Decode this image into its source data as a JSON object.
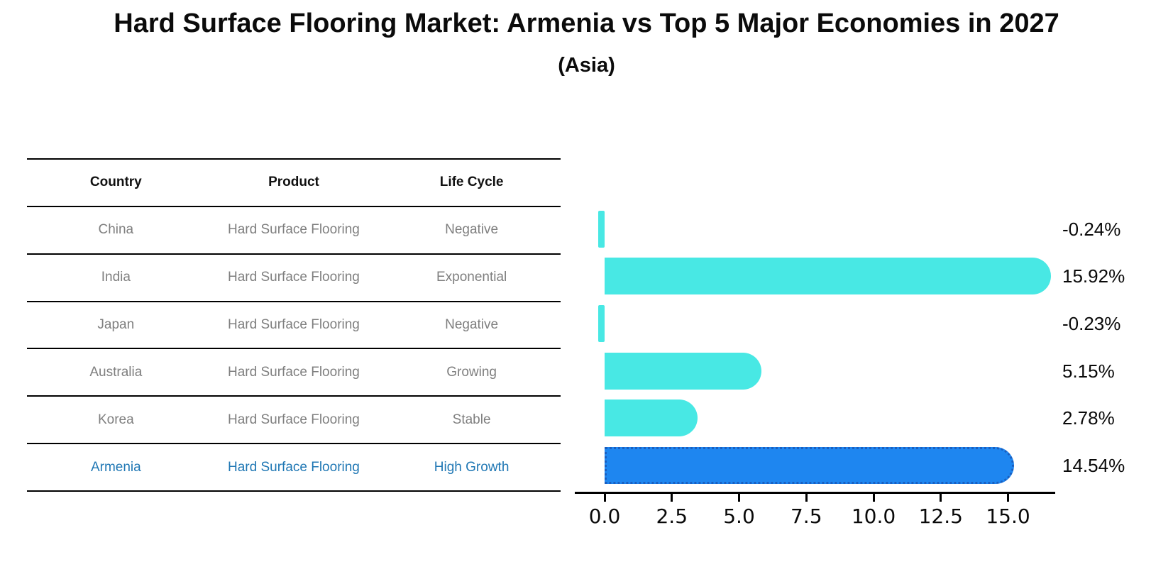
{
  "title": "Hard Surface Flooring Market: Armenia vs Top 5 Major Economies in 2027",
  "subtitle": "(Asia)",
  "table": {
    "headers": [
      "Country",
      "Product",
      "Life Cycle"
    ],
    "rows": [
      {
        "country": "China",
        "product": "Hard Surface Flooring",
        "life_cycle": "Negative",
        "highlight": false
      },
      {
        "country": "India",
        "product": "Hard Surface Flooring",
        "life_cycle": "Exponential",
        "highlight": false
      },
      {
        "country": "Japan",
        "product": "Hard Surface Flooring",
        "life_cycle": "Negative",
        "highlight": false
      },
      {
        "country": "Australia",
        "product": "Hard Surface Flooring",
        "life_cycle": "Growing",
        "highlight": false
      },
      {
        "country": "Korea",
        "product": "Hard Surface Flooring",
        "life_cycle": "Stable",
        "highlight": false
      },
      {
        "country": "Armenia",
        "product": "Hard Surface Flooring",
        "life_cycle": "High Growth",
        "highlight": true
      }
    ]
  },
  "chart_data": {
    "type": "bar",
    "orientation": "horizontal",
    "title": "",
    "xlabel": "",
    "ylabel": "",
    "categories": [
      "China",
      "India",
      "Japan",
      "Australia",
      "Korea",
      "Armenia"
    ],
    "values": [
      -0.24,
      15.92,
      -0.23,
      5.15,
      2.78,
      14.54
    ],
    "value_labels": [
      "-0.24%",
      "15.92%",
      "-0.23%",
      "5.15%",
      "2.78%",
      "14.54%"
    ],
    "xticks": [
      0.0,
      2.5,
      5.0,
      7.5,
      10.0,
      12.5,
      15.0
    ],
    "xtick_labels": [
      "0.0",
      "2.5",
      "5.0",
      "7.5",
      "10.0",
      "12.5",
      "15.0"
    ],
    "xlim": [
      -1.1,
      16.8
    ],
    "grid": false,
    "legend": false,
    "bar_color": "#48E8E4",
    "highlight_index": 5,
    "highlight_bar_color": "#1E86F0",
    "highlight_border_color": "#1A5FC0",
    "highlight_text_color": "#1f77b4"
  }
}
